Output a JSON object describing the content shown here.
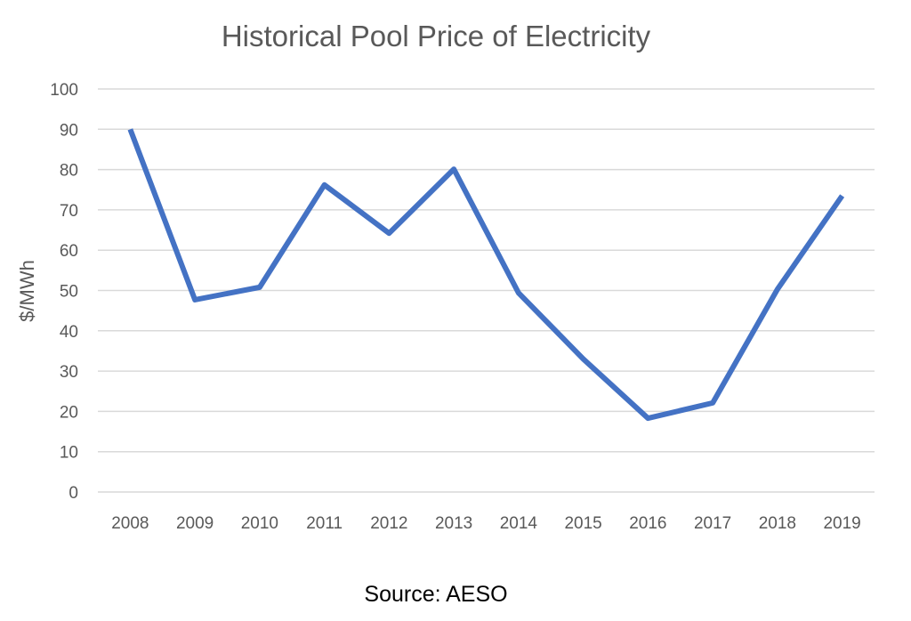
{
  "chart_data": {
    "type": "line",
    "title": "Historical Pool Price of Electricity",
    "xlabel": "",
    "ylabel": "$/MWh",
    "categories": [
      "2008",
      "2009",
      "2010",
      "2011",
      "2012",
      "2013",
      "2014",
      "2015",
      "2016",
      "2017",
      "2018",
      "2019"
    ],
    "series": [
      {
        "values": [
          90,
          47.7,
          50.8,
          76.2,
          64.2,
          80.1,
          49.4,
          33,
          18.3,
          22.1,
          50.3,
          73.5
        ],
        "color": "#4472C4"
      }
    ],
    "ylim": [
      0,
      100
    ],
    "yticks": [
      0,
      10,
      20,
      30,
      40,
      50,
      60,
      70,
      80,
      90,
      100
    ],
    "grid": true,
    "legend": "none",
    "source": "Source: AESO"
  }
}
